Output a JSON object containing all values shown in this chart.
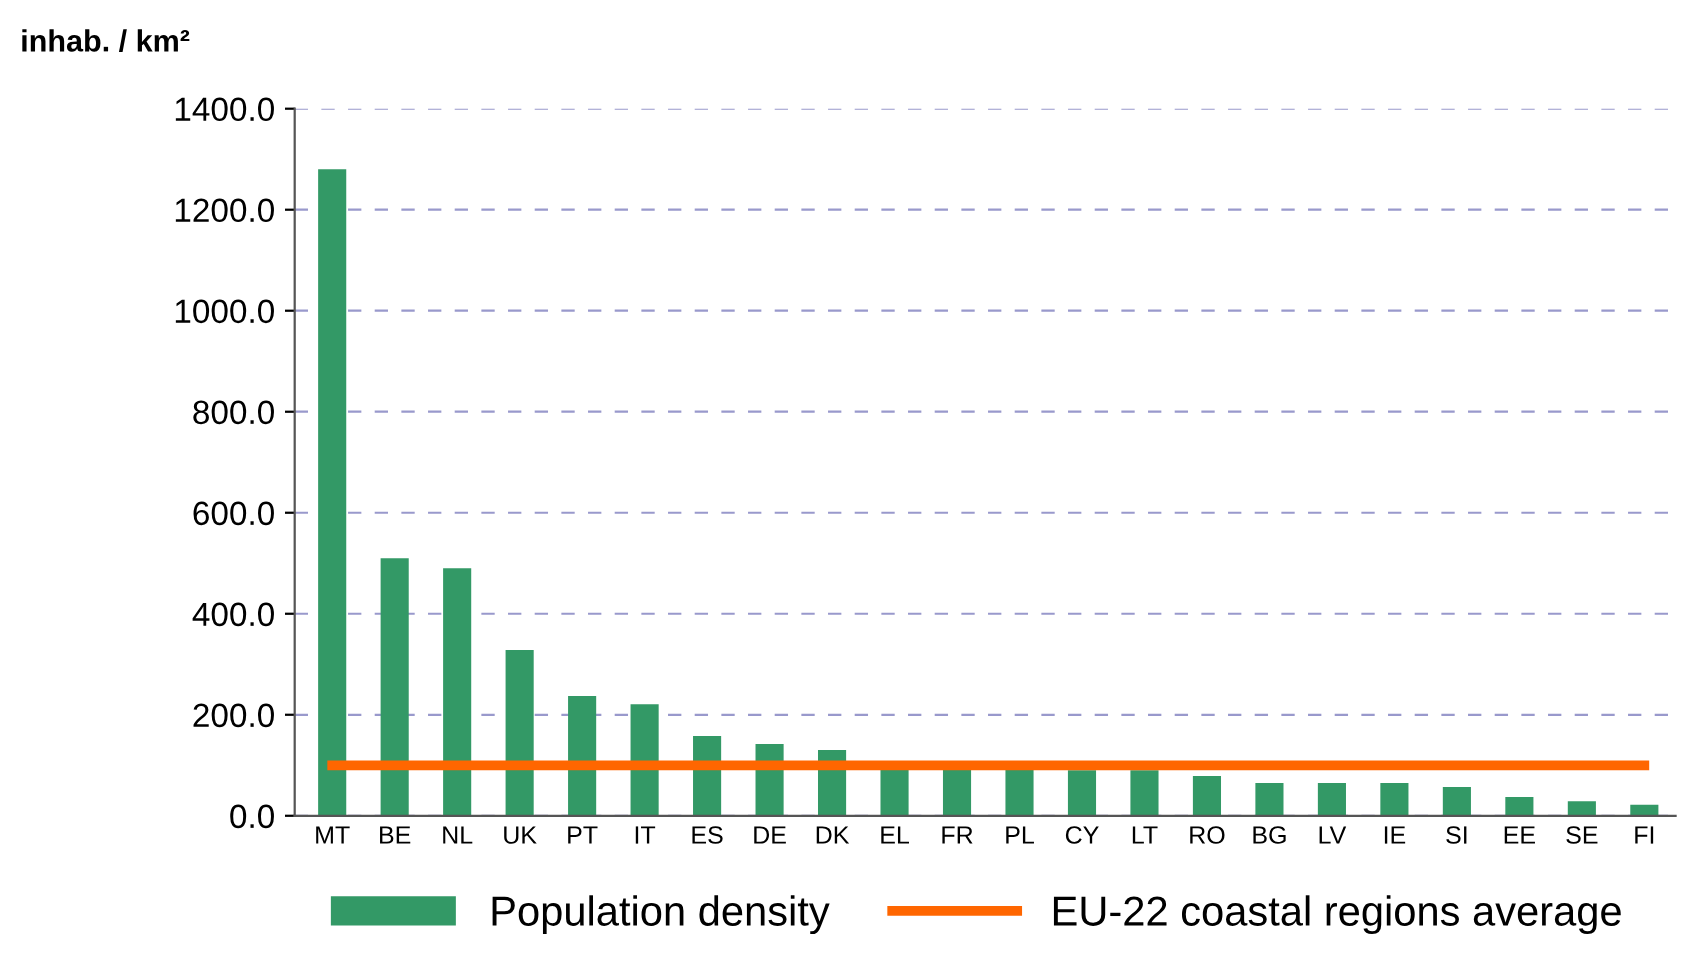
{
  "chart_data": {
    "type": "bar",
    "ylabel": "inhab. / km²",
    "categories": [
      "MT",
      "BE",
      "NL",
      "UK",
      "PT",
      "IT",
      "ES",
      "DE",
      "DK",
      "EL",
      "FR",
      "PL",
      "CY",
      "LT",
      "RO",
      "BG",
      "LV",
      "IE",
      "SI",
      "EE",
      "SE",
      "FI"
    ],
    "series": [
      {
        "name": "Population density",
        "color": "#339966",
        "values": [
          1280,
          510,
          490,
          328,
          237,
          221,
          158,
          142,
          130,
          95,
          95,
          95,
          90,
          90,
          79,
          65,
          65,
          65,
          57,
          37,
          29,
          22
        ]
      },
      {
        "name": "EU-22 coastal regions average",
        "type": "line",
        "color": "#ff6600",
        "values": [
          100,
          100,
          100,
          100,
          100,
          100,
          100,
          100,
          100,
          100,
          100,
          100,
          100,
          100,
          100,
          100,
          100,
          100,
          100,
          100,
          100,
          100
        ]
      }
    ],
    "ylim": [
      0,
      1400
    ],
    "yticks": [
      {
        "value": 0,
        "label": "0.0"
      },
      {
        "value": 200,
        "label": "200.0"
      },
      {
        "value": 400,
        "label": "400.0"
      },
      {
        "value": 600,
        "label": "600.0"
      },
      {
        "value": 800,
        "label": "800.0"
      },
      {
        "value": 1000,
        "label": "1000.0"
      },
      {
        "value": 1200,
        "label": "1200.0"
      },
      {
        "value": 1400,
        "label": "1400.0"
      }
    ],
    "grid": "y",
    "legend": "bottom"
  }
}
